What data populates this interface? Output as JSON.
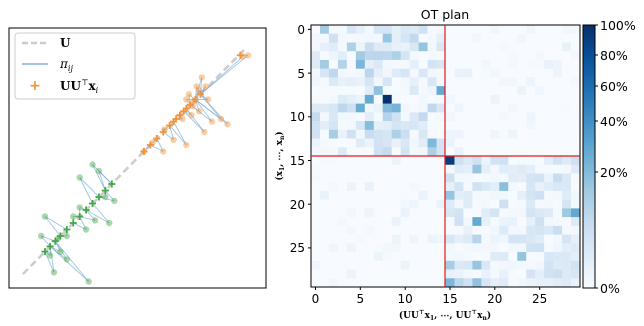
{
  "colors": {
    "line_dashed": "#cccccc",
    "edges": "#7fb1d6",
    "orange": "#f39237",
    "green": "#44a744",
    "block_border": "#e31a1c"
  },
  "chart_data": [
    {
      "type": "scatter",
      "title": "",
      "legend": {
        "position": "top-left",
        "entries": [
          "U",
          "π_ij",
          "UU^⊤x_i"
        ]
      },
      "line": {
        "from": [
          -1.0,
          -1.0
        ],
        "to": [
          1.0,
          1.0
        ]
      },
      "points_orange": [
        [
          0.82,
          0.78
        ],
        [
          0.86,
          0.79
        ],
        [
          0.46,
          0.55
        ],
        [
          0.48,
          0.52
        ],
        [
          0.5,
          0.62
        ],
        [
          0.4,
          0.49
        ],
        [
          0.44,
          0.44
        ],
        [
          0.55,
          0.45
        ],
        [
          0.38,
          0.45
        ],
        [
          0.53,
          0.55
        ],
        [
          0.43,
          0.4
        ],
        [
          0.48,
          0.36
        ],
        [
          0.42,
          0.33
        ],
        [
          0.65,
          0.3
        ],
        [
          0.7,
          0.26
        ],
        [
          0.58,
          0.28
        ],
        [
          0.21,
          0.22
        ],
        [
          0.28,
          0.14
        ],
        [
          0.2,
          0.05
        ],
        [
          0.38,
          0.1
        ],
        [
          0.12,
          0.12
        ],
        [
          0.05,
          0.05
        ],
        [
          0.35,
          0.3
        ],
        [
          0.52,
          0.2
        ]
      ],
      "proj_orange": [
        [
          0.8,
          0.79
        ],
        [
          0.49,
          0.49
        ],
        [
          0.45,
          0.45
        ],
        [
          0.41,
          0.41
        ],
        [
          0.38,
          0.38
        ],
        [
          0.36,
          0.36
        ],
        [
          0.33,
          0.33
        ],
        [
          0.3,
          0.3
        ],
        [
          0.28,
          0.28
        ],
        [
          0.25,
          0.25
        ],
        [
          0.2,
          0.2
        ],
        [
          0.15,
          0.15
        ],
        [
          0.1,
          0.1
        ],
        [
          0.05,
          0.05
        ]
      ],
      "points_green": [
        [
          -0.35,
          -0.05
        ],
        [
          -0.3,
          -0.1
        ],
        [
          -0.45,
          -0.15
        ],
        [
          -0.25,
          -0.3
        ],
        [
          -0.18,
          -0.33
        ],
        [
          -0.22,
          -0.5
        ],
        [
          -0.33,
          -0.48
        ],
        [
          -0.4,
          -0.55
        ],
        [
          -0.5,
          -0.45
        ],
        [
          -0.55,
          -0.6
        ],
        [
          -0.45,
          -0.38
        ],
        [
          -0.72,
          -0.45
        ],
        [
          -0.75,
          -0.6
        ],
        [
          -0.62,
          -0.62
        ],
        [
          -0.6,
          -0.72
        ],
        [
          -0.65,
          -0.88
        ],
        [
          -0.38,
          -0.95
        ],
        [
          -0.55,
          -0.78
        ],
        [
          -0.68,
          -0.75
        ]
      ],
      "proj_green": [
        [
          -0.2,
          -0.2
        ],
        [
          -0.25,
          -0.25
        ],
        [
          -0.3,
          -0.3
        ],
        [
          -0.35,
          -0.35
        ],
        [
          -0.4,
          -0.4
        ],
        [
          -0.45,
          -0.45
        ],
        [
          -0.5,
          -0.5
        ],
        [
          -0.55,
          -0.55
        ],
        [
          -0.6,
          -0.6
        ],
        [
          -0.64,
          -0.64
        ],
        [
          -0.68,
          -0.68
        ],
        [
          -0.72,
          -0.72
        ]
      ]
    },
    {
      "type": "heatmap",
      "title": "OT plan",
      "xlabel": "(UU^⊤x_1, ⋯, UU^⊤x_n)",
      "ylabel": "(x_1, ⋯, x_n)",
      "n": 30,
      "x_ticks": [
        0,
        5,
        10,
        15,
        20,
        25
      ],
      "y_ticks": [
        0,
        5,
        10,
        15,
        20,
        25
      ],
      "colorbar_ticks": [
        "0%",
        "20%",
        "40%",
        "60%",
        "80%",
        "100%"
      ],
      "block_boundary": 14.5
    }
  ],
  "text": {
    "legend_u": "U",
    "legend_pi": "π",
    "legend_pi_sub": "ij",
    "legend_proj": "UU",
    "legend_proj_sup": "⊤",
    "legend_proj_x": "x",
    "legend_proj_sub": "i",
    "title": "OT plan",
    "ylabel_1": "(x",
    "ylabel_sub1": "1",
    "ylabel_2": ", ⋯, x",
    "ylabel_subn": "n",
    "ylabel_3": ")",
    "xlabel_1": "(UU",
    "xlabel_sup": "⊤",
    "xlabel_2": "x",
    "xlabel_sub1": "1",
    "xlabel_3": ", ⋯, UU",
    "xlabel_4": "x",
    "xlabel_subn": "n",
    "xlabel_5": ")",
    "xt0": "0",
    "xt1": "5",
    "xt2": "10",
    "xt3": "15",
    "xt4": "20",
    "xt5": "25",
    "yt0": "0",
    "yt1": "5",
    "yt2": "10",
    "yt3": "15",
    "yt4": "20",
    "yt5": "25",
    "cb0": "0%",
    "cb1": "20%",
    "cb2": "40%",
    "cb3": "60%",
    "cb4": "80%",
    "cb5": "100%"
  }
}
